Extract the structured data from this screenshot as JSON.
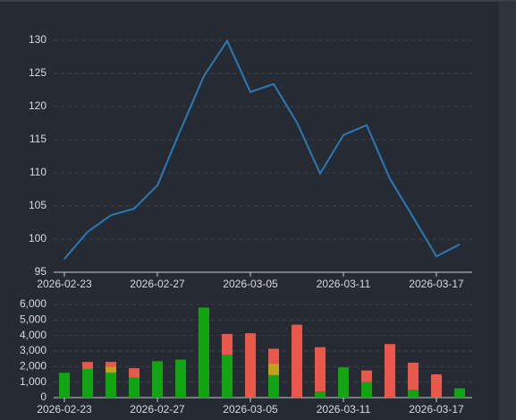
{
  "chart_data": [
    {
      "type": "line",
      "categories": [
        "2026-02-23",
        null,
        null,
        null,
        "2026-02-27",
        null,
        null,
        null,
        "2026-03-05",
        null,
        null,
        null,
        "2026-03-11",
        null,
        null,
        null,
        "2026-03-17",
        null
      ],
      "series": [
        {
          "color": "#2b79b5",
          "values": [
            97,
            101.1,
            103.6,
            104.6,
            108.1,
            116.5,
            124.6,
            129.9,
            122.2,
            123.4,
            117.6,
            109.9,
            115.7,
            117.2,
            109.1,
            103.3,
            97.4,
            99.2
          ]
        }
      ],
      "ylim": [
        95,
        130
      ],
      "yticks": [
        95,
        100,
        105,
        110,
        115,
        120,
        125,
        130
      ],
      "grid": true
    },
    {
      "type": "bar",
      "stacked": true,
      "categories": [
        "2026-02-23",
        null,
        null,
        null,
        "2026-02-27",
        null,
        null,
        null,
        "2026-03-05",
        null,
        null,
        null,
        "2026-03-11",
        null,
        null,
        null,
        "2026-03-17",
        null
      ],
      "series": [
        {
          "color": "#12a412",
          "values": [
            1600,
            1850,
            1600,
            1300,
            2350,
            2450,
            5800,
            2750,
            null,
            1450,
            null,
            400,
            1950,
            1000,
            null,
            500,
            null,
            600
          ]
        },
        {
          "color": "#c3a01c",
          "values": [
            null,
            null,
            400,
            null,
            null,
            null,
            null,
            null,
            null,
            750,
            null,
            null,
            null,
            null,
            null,
            null,
            null,
            null
          ]
        },
        {
          "color": "#e9584b",
          "values": [
            null,
            450,
            300,
            600,
            null,
            null,
            null,
            1350,
            4150,
            950,
            4700,
            2850,
            null,
            750,
            3450,
            1750,
            1500,
            null
          ]
        }
      ],
      "ylim": [
        0,
        6000
      ],
      "yticks": [
        0,
        {
          "value": 1000,
          "label": "1,000"
        },
        {
          "value": 2000,
          "label": "2,000"
        },
        {
          "value": 3000,
          "label": "3,000"
        },
        {
          "value": 4000,
          "label": "4,000"
        },
        {
          "value": 5000,
          "label": "5,000"
        },
        {
          "value": 6000,
          "label": "6,000"
        }
      ],
      "grid": true
    }
  ]
}
